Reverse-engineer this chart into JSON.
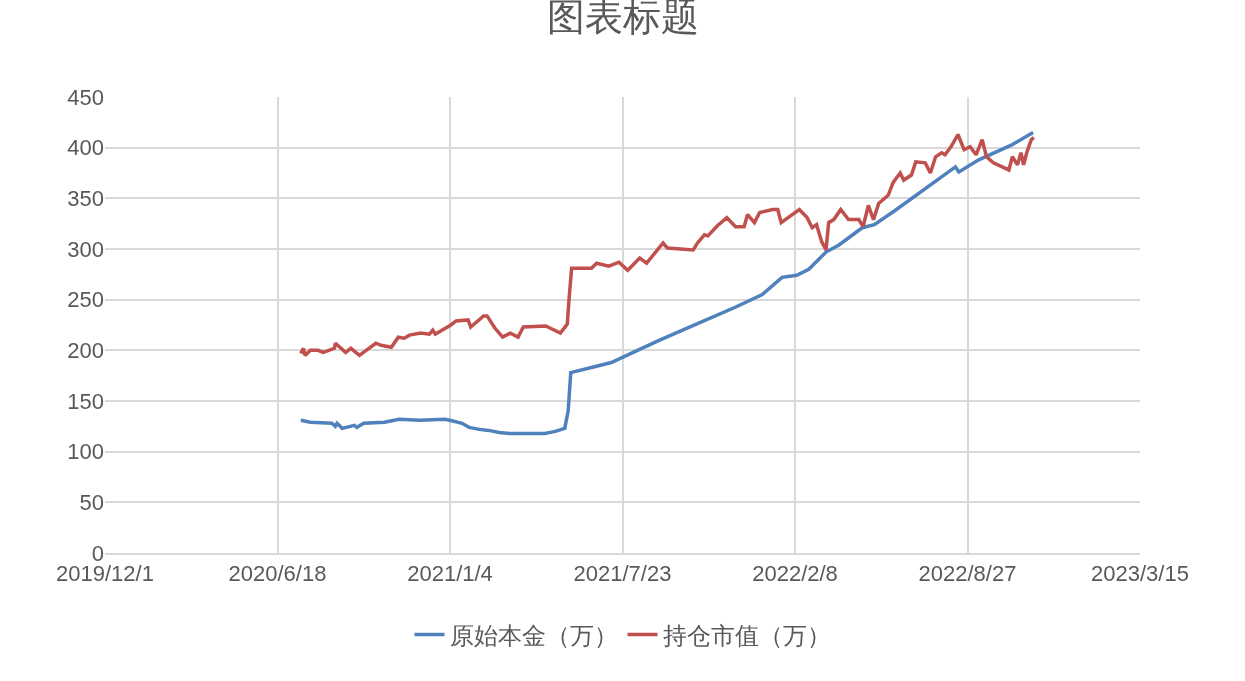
{
  "chart_data": {
    "type": "line",
    "title": "图表标题",
    "xlim": [
      "2019-12-01",
      "2023-03-15"
    ],
    "xticks": [
      {
        "value": "2019-12-01",
        "label": "2019/12/1"
      },
      {
        "value": "2020-06-18",
        "label": "2020/6/18"
      },
      {
        "value": "2021-01-04",
        "label": "2021/1/4"
      },
      {
        "value": "2021-07-23",
        "label": "2021/7/23"
      },
      {
        "value": "2022-02-08",
        "label": "2022/2/8"
      },
      {
        "value": "2022-08-27",
        "label": "2022/8/27"
      },
      {
        "value": "2023-03-15",
        "label": "2023/3/15"
      }
    ],
    "ylim": [
      0,
      450
    ],
    "yticks": [
      0,
      50,
      100,
      150,
      200,
      250,
      300,
      350,
      400,
      450
    ],
    "grid": true,
    "legend": "bottom",
    "marker": "none",
    "line_style": "solid",
    "series": [
      {
        "name": "原始本金（万）",
        "color": "#4f81bd",
        "x": [
          "2020-07-15",
          "2020-07-26",
          "2020-08-20",
          "2020-08-24",
          "2020-08-26",
          "2020-09-01",
          "2020-09-15",
          "2020-09-18",
          "2020-09-26",
          "2020-10-20",
          "2020-11-06",
          "2020-11-30",
          "2020-12-29",
          "2021-01-04",
          "2021-01-18",
          "2021-01-26",
          "2021-02-07",
          "2021-02-18",
          "2021-03-02",
          "2021-03-14",
          "2021-03-26",
          "2021-04-24",
          "2021-05-06",
          "2021-05-17",
          "2021-05-21",
          "2021-05-24",
          "2021-06-17",
          "2021-07-10",
          "2021-07-23",
          "2021-09-04",
          "2021-10-20",
          "2021-12-02",
          "2022-01-01",
          "2022-01-24",
          "2022-02-10",
          "2022-02-24",
          "2022-03-16",
          "2022-03-31",
          "2022-04-27",
          "2022-05-11",
          "2022-06-04",
          "2022-08-13",
          "2022-08-17",
          "2022-09-09",
          "2022-10-18",
          "2022-11-11"
        ],
        "values": [
          131,
          129,
          128,
          125,
          128,
          123,
          126,
          124,
          128,
          129,
          132,
          131,
          132,
          131,
          128,
          124,
          122,
          121,
          119,
          118,
          118,
          118,
          120,
          123,
          140,
          178,
          183,
          188,
          193,
          210,
          227,
          243,
          255,
          272,
          274,
          280,
          297,
          304,
          321,
          324,
          338,
          381,
          376,
          388,
          403,
          415
        ]
      },
      {
        "name": "持仓市值（万）",
        "color": "#c0504d",
        "x": [
          "2020-07-15",
          "2020-07-18",
          "2020-07-20",
          "2020-07-26",
          "2020-08-04",
          "2020-08-10",
          "2020-08-23",
          "2020-08-24",
          "2020-09-05",
          "2020-09-11",
          "2020-09-21",
          "2020-10-10",
          "2020-10-16",
          "2020-10-28",
          "2020-11-05",
          "2020-11-12",
          "2020-11-18",
          "2020-12-01",
          "2020-12-11",
          "2020-12-15",
          "2020-12-18",
          "2021-01-05",
          "2021-01-11",
          "2021-01-25",
          "2021-01-28",
          "2021-02-12",
          "2021-02-16",
          "2021-02-25",
          "2021-03-06",
          "2021-03-15",
          "2021-03-24",
          "2021-03-30",
          "2021-04-25",
          "2021-05-12",
          "2021-05-20",
          "2021-05-22",
          "2021-05-25",
          "2021-06-17",
          "2021-06-23",
          "2021-07-07",
          "2021-07-19",
          "2021-07-29",
          "2021-08-12",
          "2021-08-20",
          "2021-09-08",
          "2021-09-13",
          "2021-10-13",
          "2021-10-18",
          "2021-10-26",
          "2021-10-30",
          "2021-11-10",
          "2021-11-21",
          "2021-12-01",
          "2021-12-11",
          "2021-12-15",
          "2021-12-23",
          "2021-12-29",
          "2022-01-13",
          "2022-01-19",
          "2022-01-23",
          "2022-02-13",
          "2022-02-22",
          "2022-02-28",
          "2022-03-05",
          "2022-03-11",
          "2022-03-16",
          "2022-03-19",
          "2022-03-25",
          "2022-04-02",
          "2022-04-11",
          "2022-04-23",
          "2022-04-28",
          "2022-05-04",
          "2022-05-10",
          "2022-05-16",
          "2022-05-27",
          "2022-06-02",
          "2022-06-10",
          "2022-06-14",
          "2022-06-23",
          "2022-06-28",
          "2022-07-09",
          "2022-07-15",
          "2022-07-21",
          "2022-07-28",
          "2022-08-01",
          "2022-08-08",
          "2022-08-16",
          "2022-08-23",
          "2022-08-30",
          "2022-09-06",
          "2022-09-13",
          "2022-09-18",
          "2022-09-26",
          "2022-10-14",
          "2022-10-18",
          "2022-10-24",
          "2022-10-28",
          "2022-10-31",
          "2022-11-04",
          "2022-11-09",
          "2022-11-12"
        ],
        "values": [
          197,
          202,
          195,
          200,
          200,
          198,
          202,
          207,
          198,
          202,
          195,
          207,
          205,
          203,
          213,
          212,
          215,
          217,
          216,
          220,
          216,
          225,
          229,
          230,
          223,
          234,
          234,
          222,
          213,
          217,
          213,
          223,
          224,
          217,
          226,
          250,
          281,
          281,
          286,
          283,
          287,
          279,
          291,
          286,
          306,
          301,
          299,
          306,
          314,
          313,
          323,
          331,
          322,
          322,
          334,
          326,
          336,
          339,
          339,
          326,
          339,
          331,
          321,
          324,
          307,
          299,
          326,
          329,
          339,
          329,
          329,
          322,
          343,
          329,
          345,
          353,
          366,
          375,
          368,
          373,
          386,
          385,
          375,
          391,
          395,
          393,
          401,
          413,
          398,
          401,
          393,
          408,
          391,
          385,
          378,
          391,
          383,
          395,
          383,
          396,
          408,
          410
        ]
      }
    ]
  }
}
